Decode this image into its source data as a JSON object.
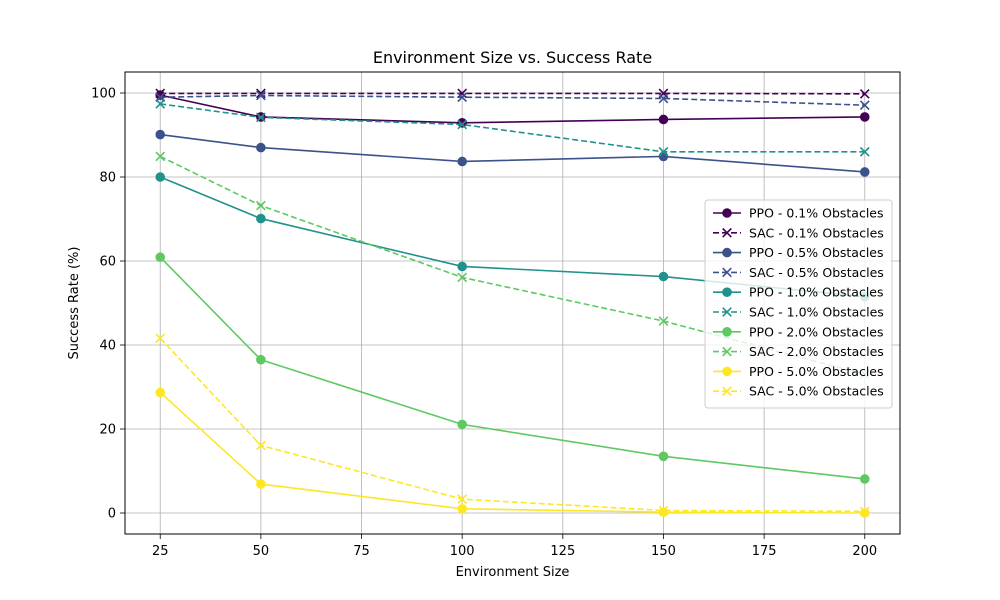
{
  "chart_data": {
    "type": "line",
    "title": "Environment Size vs. Success Rate",
    "xlabel": "Environment Size",
    "ylabel": "Success Rate (%)",
    "x": [
      25,
      50,
      100,
      150,
      200
    ],
    "xlim": [
      16.25,
      208.75
    ],
    "ylim": [
      -5,
      105
    ],
    "xticks": [
      25,
      50,
      75,
      100,
      125,
      150,
      175,
      200
    ],
    "yticks": [
      0,
      20,
      40,
      60,
      80,
      100
    ],
    "grid": true,
    "legend_position": "center-right",
    "series": [
      {
        "name": "PPO - 0.1% Obstacles",
        "color": "#440154",
        "dash": false,
        "marker": "circle",
        "values": [
          99.5,
          94.3,
          92.9,
          93.7,
          94.3
        ]
      },
      {
        "name": "SAC - 0.1% Obstacles",
        "color": "#440154",
        "dash": true,
        "marker": "x",
        "values": [
          99.9,
          99.9,
          99.9,
          99.9,
          99.8
        ]
      },
      {
        "name": "PPO - 0.5% Obstacles",
        "color": "#3b528b",
        "dash": false,
        "marker": "circle",
        "values": [
          90.1,
          87.0,
          83.7,
          84.9,
          81.2
        ]
      },
      {
        "name": "SAC - 0.5% Obstacles",
        "color": "#3b528b",
        "dash": true,
        "marker": "x",
        "values": [
          99.0,
          99.4,
          99.0,
          98.7,
          97.1
        ]
      },
      {
        "name": "PPO - 1.0% Obstacles",
        "color": "#21918c",
        "dash": false,
        "marker": "circle",
        "values": [
          80.0,
          70.1,
          58.7,
          56.3,
          51.5
        ]
      },
      {
        "name": "SAC - 1.0% Obstacles",
        "color": "#21918c",
        "dash": true,
        "marker": "x",
        "values": [
          97.4,
          94.2,
          92.5,
          86.0,
          86.0
        ]
      },
      {
        "name": "PPO - 2.0% Obstacles",
        "color": "#5ec962",
        "dash": false,
        "marker": "circle",
        "values": [
          60.9,
          36.5,
          21.1,
          13.5,
          8.1
        ]
      },
      {
        "name": "SAC - 2.0% Obstacles",
        "color": "#5ec962",
        "dash": true,
        "marker": "x",
        "values": [
          84.9,
          73.2,
          56.1,
          45.7,
          33.0
        ]
      },
      {
        "name": "PPO - 5.0% Obstacles",
        "color": "#fde725",
        "dash": false,
        "marker": "circle",
        "values": [
          28.7,
          6.9,
          1.0,
          0.2,
          0.0
        ]
      },
      {
        "name": "SAC - 5.0% Obstacles",
        "color": "#fde725",
        "dash": true,
        "marker": "x",
        "values": [
          41.6,
          16.1,
          3.3,
          0.6,
          0.4
        ]
      }
    ]
  }
}
